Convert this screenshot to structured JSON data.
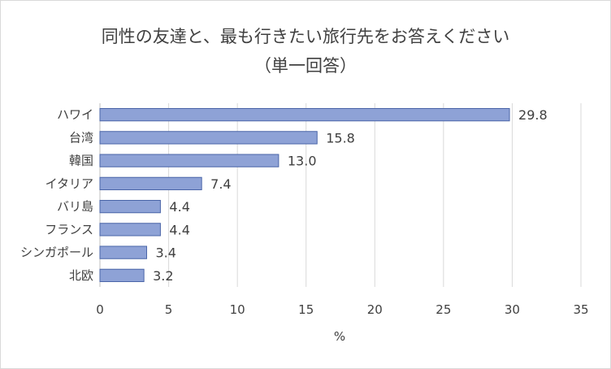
{
  "chart_data": {
    "type": "bar",
    "orientation": "horizontal",
    "title": "同性の友達と、最も行きたい旅行先をお答えください",
    "subtitle": "（単一回答）",
    "categories": [
      "ハワイ",
      "台湾",
      "韓国",
      "イタリア",
      "バリ島",
      "フランス",
      "シンガポール",
      "北欧"
    ],
    "values": [
      29.8,
      15.8,
      13.0,
      7.4,
      4.4,
      4.4,
      3.4,
      3.2
    ],
    "value_labels": [
      "29.8",
      "15.8",
      "13.0",
      "7.4",
      "4.4",
      "4.4",
      "3.4",
      "3.2"
    ],
    "xlabel": "%",
    "ylabel": "",
    "xlim": [
      0,
      35
    ],
    "xticks": [
      "0",
      "5",
      "10",
      "15",
      "20",
      "25",
      "30",
      "35"
    ],
    "grid": "vertical",
    "bar_color": "#8ea2d6",
    "bar_edge_color": "#4a65a8"
  }
}
